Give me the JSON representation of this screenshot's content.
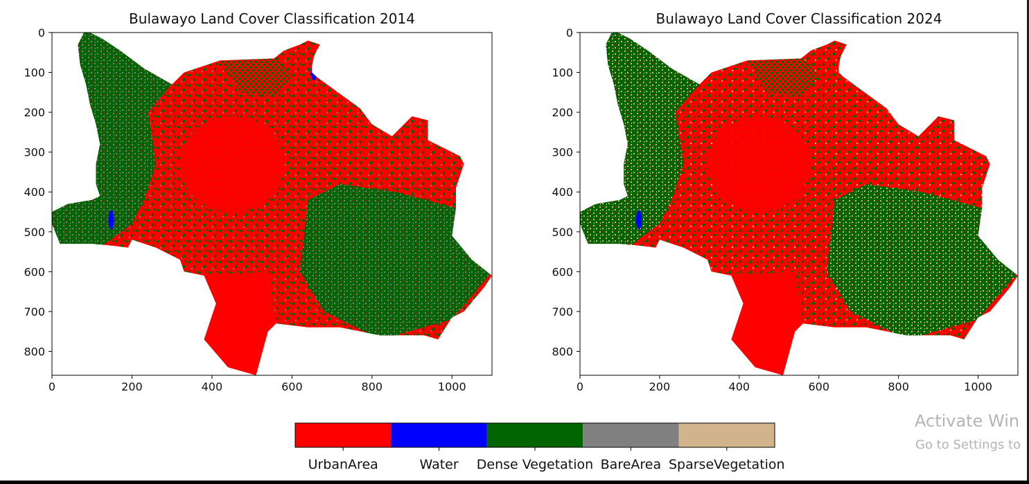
{
  "chart_data": [
    {
      "type": "heatmap",
      "title": "Bulawayo Land Cover Classification 2014",
      "x_ticks": [
        0,
        200,
        400,
        600,
        800,
        1000
      ],
      "y_ticks": [
        0,
        100,
        200,
        300,
        400,
        500,
        600,
        700,
        800
      ],
      "xlim": [
        0,
        1100
      ],
      "ylim": [
        860,
        0
      ],
      "classes_present": [
        "UrbanArea",
        "Water",
        "Dense Vegetation",
        "BareArea"
      ]
    },
    {
      "type": "heatmap",
      "title": "Bulawayo Land Cover Classification 2024",
      "x_ticks": [
        0,
        200,
        400,
        600,
        800,
        1000
      ],
      "y_ticks": [
        0,
        100,
        200,
        300,
        400,
        500,
        600,
        700,
        800
      ],
      "xlim": [
        0,
        1100
      ],
      "ylim": [
        860,
        0
      ],
      "classes_present": [
        "UrbanArea",
        "Water",
        "Dense Vegetation",
        "SparseVegetation"
      ]
    }
  ],
  "legend": {
    "classes": [
      {
        "label": "UrbanArea",
        "color": "#ff0000"
      },
      {
        "label": "Water",
        "color": "#0000ff"
      },
      {
        "label": "Dense Vegetation",
        "color": "#006400"
      },
      {
        "label": "BareArea",
        "color": "#808080"
      },
      {
        "label": "SparseVegetation",
        "color": "#d2b48c"
      }
    ]
  },
  "watermark": {
    "title": "Activate Win",
    "subtitle": "Go to Settings to"
  }
}
